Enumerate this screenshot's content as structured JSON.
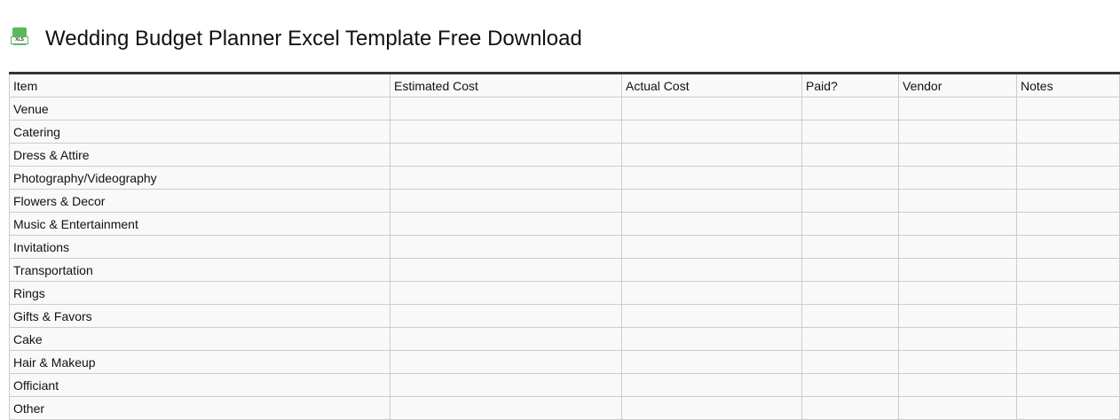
{
  "title": "Wedding Budget Planner Excel Template Free Download",
  "icon": {
    "name": "xls-file-icon",
    "label": "XLS",
    "color": "#5cb85c"
  },
  "columns": [
    "Item",
    "Estimated Cost",
    "Actual Cost",
    "Paid?",
    "Vendor",
    "Notes"
  ],
  "rows": [
    "Venue",
    "Catering",
    "Dress & Attire",
    "Photography/Videography",
    "Flowers & Decor",
    "Music & Entertainment",
    "Invitations",
    "Transportation",
    "Rings",
    "Gifts & Favors",
    "Cake",
    "Hair & Makeup",
    "Officiant",
    "Other"
  ]
}
